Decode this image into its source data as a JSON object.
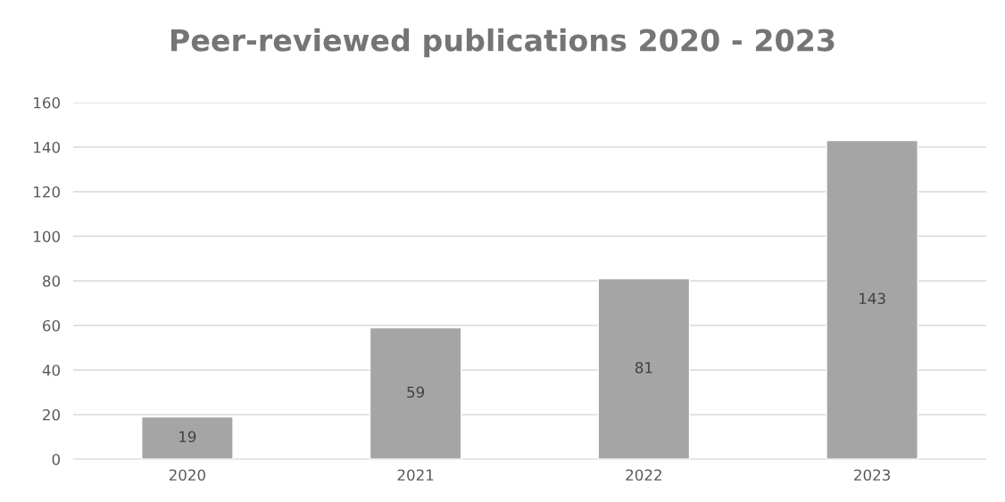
{
  "chart_data": {
    "type": "bar",
    "title": "Peer-reviewed publications 2020 - 2023",
    "categories": [
      "2020",
      "2021",
      "2022",
      "2023"
    ],
    "values": [
      19,
      59,
      81,
      143
    ],
    "color": "#a5a5a5",
    "ylim": [
      0,
      160
    ],
    "yticks": [
      0,
      20,
      40,
      60,
      80,
      100,
      120,
      140,
      160
    ],
    "grid": "y",
    "data_labels": true
  }
}
